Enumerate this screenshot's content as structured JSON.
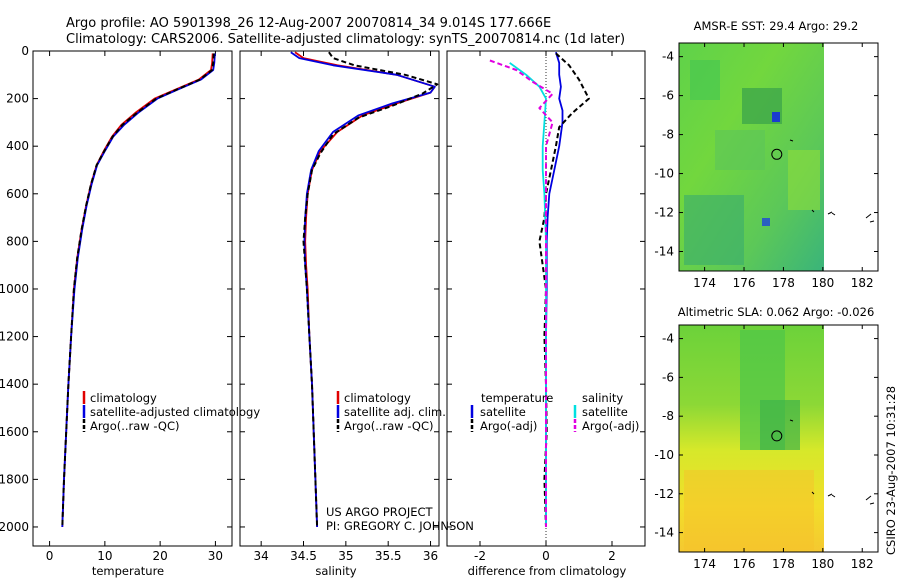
{
  "title_line1": "Argo profile: AO 5901398_26 12-Aug-2007 20070814_34 9.014S 177.666E",
  "title_line2": "Climatology: CARS2006. Satellite-adjusted climatology: synTS_20070814.nc (1d later)",
  "credit_line1": "US ARGO PROJECT",
  "credit_line2": "PI: GREGORY C. JOHNSON",
  "timestamp": "CSIRO 23-Aug-2007 10:31:28",
  "colors": {
    "climatology": "#e00000",
    "satellite": "#0000e0",
    "argo": "#000000",
    "sal_satellite": "#00e0e0",
    "sal_argo": "#e000e0"
  },
  "chart_data": [
    {
      "type": "line",
      "xlabel": "temperature",
      "xlim": [
        -3,
        33
      ],
      "ylim": [
        0,
        2080
      ],
      "y_inverted": true,
      "x_ticks": [
        0,
        10,
        20,
        30
      ],
      "y_ticks": [
        0,
        200,
        400,
        600,
        800,
        1000,
        1200,
        1400,
        1600,
        1800,
        2000
      ],
      "legend": [
        "climatology",
        "satellite-adjusted climatology",
        "Argo(..raw -QC)"
      ],
      "series": [
        {
          "name": "climatology",
          "color": "#e00000",
          "points": [
            [
              29.5,
              10
            ],
            [
              29.4,
              50
            ],
            [
              29.2,
              80
            ],
            [
              27,
              120
            ],
            [
              23,
              160
            ],
            [
              19,
              200
            ],
            [
              15.5,
              260
            ],
            [
              13,
              310
            ],
            [
              11.3,
              360
            ],
            [
              9.8,
              420
            ],
            [
              8.5,
              480
            ],
            [
              7.5,
              560
            ],
            [
              6.6,
              650
            ],
            [
              5.8,
              750
            ],
            [
              5,
              870
            ],
            [
              4.4,
              1000
            ],
            [
              3.9,
              1200
            ],
            [
              3.4,
              1400
            ],
            [
              3,
              1600
            ],
            [
              2.6,
              1800
            ],
            [
              2.3,
              2000
            ]
          ]
        },
        {
          "name": "satellite-adjusted climatology",
          "color": "#0000e0",
          "points": [
            [
              29.9,
              10
            ],
            [
              29.8,
              50
            ],
            [
              29.6,
              80
            ],
            [
              27.4,
              120
            ],
            [
              23.4,
              160
            ],
            [
              19.5,
              200
            ],
            [
              16,
              260
            ],
            [
              13.5,
              310
            ],
            [
              11.5,
              360
            ],
            [
              10,
              420
            ],
            [
              8.6,
              480
            ],
            [
              7.6,
              560
            ],
            [
              6.7,
              650
            ],
            [
              5.9,
              750
            ],
            [
              5.1,
              870
            ],
            [
              4.5,
              1000
            ],
            [
              3.9,
              1200
            ],
            [
              3.4,
              1400
            ],
            [
              3,
              1600
            ],
            [
              2.6,
              1800
            ],
            [
              2.3,
              2000
            ]
          ]
        },
        {
          "name": "Argo(..raw -QC)",
          "color": "#000000",
          "dash": true,
          "points": [
            [
              29.7,
              10
            ],
            [
              29.6,
              50
            ],
            [
              29.4,
              80
            ],
            [
              27.2,
              120
            ],
            [
              23.2,
              160
            ],
            [
              19.3,
              200
            ],
            [
              15.8,
              260
            ],
            [
              13.2,
              310
            ],
            [
              11.4,
              360
            ],
            [
              9.9,
              420
            ],
            [
              8.5,
              480
            ],
            [
              7.5,
              560
            ],
            [
              6.6,
              650
            ],
            [
              5.8,
              750
            ],
            [
              5,
              870
            ],
            [
              4.4,
              1000
            ],
            [
              3.9,
              1200
            ],
            [
              3.4,
              1400
            ],
            [
              3,
              1600
            ],
            [
              2.6,
              1800
            ],
            [
              2.3,
              2000
            ]
          ]
        }
      ]
    },
    {
      "type": "line",
      "xlabel": "salinity",
      "xlim": [
        33.75,
        36.1
      ],
      "ylim": [
        0,
        2080
      ],
      "y_inverted": true,
      "x_ticks": [
        34,
        34.5,
        35,
        35.5,
        36
      ],
      "y_ticks": [
        0,
        200,
        400,
        600,
        800,
        1000,
        1200,
        1400,
        1600,
        1800,
        2000
      ],
      "legend": [
        "climatology",
        "satellite adj. clim.",
        "Argo(..raw -QC)"
      ],
      "series": [
        {
          "name": "climatology",
          "color": "#e00000",
          "points": [
            [
              34.4,
              5
            ],
            [
              34.5,
              30
            ],
            [
              34.9,
              60
            ],
            [
              35.6,
              100
            ],
            [
              36.05,
              150
            ],
            [
              36.0,
              175
            ],
            [
              35.6,
              220
            ],
            [
              35.2,
              270
            ],
            [
              34.9,
              340
            ],
            [
              34.7,
              420
            ],
            [
              34.6,
              500
            ],
            [
              34.55,
              600
            ],
            [
              34.53,
              700
            ],
            [
              34.52,
              800
            ],
            [
              34.53,
              900
            ],
            [
              34.55,
              1000
            ],
            [
              34.57,
              1200
            ],
            [
              34.6,
              1400
            ],
            [
              34.62,
              1600
            ],
            [
              34.64,
              1800
            ],
            [
              34.66,
              2000
            ]
          ]
        },
        {
          "name": "satellite adj. clim.",
          "color": "#0000e0",
          "points": [
            [
              34.35,
              5
            ],
            [
              34.45,
              30
            ],
            [
              34.85,
              60
            ],
            [
              35.6,
              100
            ],
            [
              36.05,
              150
            ],
            [
              36.0,
              175
            ],
            [
              35.55,
              220
            ],
            [
              35.15,
              270
            ],
            [
              34.85,
              340
            ],
            [
              34.68,
              420
            ],
            [
              34.59,
              500
            ],
            [
              34.54,
              600
            ],
            [
              34.52,
              700
            ],
            [
              34.51,
              800
            ],
            [
              34.52,
              900
            ],
            [
              34.54,
              1000
            ],
            [
              34.57,
              1200
            ],
            [
              34.6,
              1400
            ],
            [
              34.62,
              1600
            ],
            [
              34.64,
              1800
            ],
            [
              34.66,
              2000
            ]
          ]
        },
        {
          "name": "Argo(..raw -QC)",
          "color": "#000000",
          "dash": true,
          "points": [
            [
              34.8,
              5
            ],
            [
              34.85,
              30
            ],
            [
              35.1,
              60
            ],
            [
              35.7,
              100
            ],
            [
              36.08,
              140
            ],
            [
              35.9,
              180
            ],
            [
              35.55,
              230
            ],
            [
              35.15,
              280
            ],
            [
              34.85,
              350
            ],
            [
              34.7,
              430
            ],
            [
              34.6,
              500
            ],
            [
              34.55,
              600
            ],
            [
              34.52,
              700
            ],
            [
              34.5,
              800
            ],
            [
              34.52,
              900
            ],
            [
              34.54,
              1000
            ],
            [
              34.57,
              1200
            ],
            [
              34.6,
              1400
            ],
            [
              34.62,
              1600
            ],
            [
              34.64,
              1800
            ],
            [
              34.66,
              2000
            ]
          ]
        }
      ]
    },
    {
      "type": "line",
      "xlabel": "difference from climatology",
      "xlim": [
        -3,
        3
      ],
      "ylim": [
        0,
        2080
      ],
      "y_inverted": true,
      "x_ticks": [
        -2,
        0,
        2
      ],
      "y_ticks": [
        0,
        200,
        400,
        600,
        800,
        1000,
        1200,
        1400,
        1600,
        1800,
        2000
      ],
      "legend_temperature_header": "temperature",
      "legend_salinity_header": "salinity",
      "legend": [
        "satellite",
        "Argo(-adj)",
        "satellite",
        "Argo(-adj)"
      ],
      "series": [
        {
          "name": "satellite",
          "group": "temperature",
          "color": "#0000e0",
          "points": [
            [
              0.3,
              5
            ],
            [
              0.4,
              50
            ],
            [
              0.4,
              100
            ],
            [
              0.45,
              150
            ],
            [
              0.4,
              200
            ],
            [
              0.5,
              250
            ],
            [
              0.5,
              300
            ],
            [
              0.4,
              400
            ],
            [
              0.25,
              500
            ],
            [
              0.1,
              600
            ],
            [
              0.05,
              700
            ],
            [
              0.02,
              800
            ],
            [
              0.02,
              1000
            ],
            [
              0,
              1200
            ],
            [
              0,
              1500
            ],
            [
              0,
              2000
            ]
          ]
        },
        {
          "name": "Argo(-adj)",
          "group": "temperature",
          "color": "#000000",
          "dash": true,
          "points": [
            [
              0.3,
              10
            ],
            [
              0.7,
              60
            ],
            [
              1.0,
              120
            ],
            [
              1.3,
              200
            ],
            [
              0.8,
              260
            ],
            [
              0.4,
              320
            ],
            [
              0.3,
              400
            ],
            [
              0.15,
              500
            ],
            [
              0,
              600
            ],
            [
              -0.05,
              700
            ],
            [
              -0.2,
              800
            ],
            [
              -0.1,
              900
            ],
            [
              0,
              1000
            ],
            [
              -0.05,
              1200
            ],
            [
              0,
              1400
            ],
            [
              0.02,
              1600
            ],
            [
              -0.05,
              1800
            ],
            [
              0,
              2000
            ]
          ]
        },
        {
          "name": "satellite",
          "group": "salinity",
          "color": "#00e0e0",
          "points": [
            [
              -1.1,
              50
            ],
            [
              -0.6,
              100
            ],
            [
              -0.2,
              150
            ],
            [
              0,
              200
            ],
            [
              -0.05,
              300
            ],
            [
              -0.1,
              400
            ],
            [
              -0.1,
              500
            ],
            [
              -0.05,
              600
            ],
            [
              0,
              800
            ],
            [
              0,
              1000
            ],
            [
              0,
              1500
            ],
            [
              0,
              2000
            ]
          ]
        },
        {
          "name": "Argo(-adj)",
          "group": "salinity",
          "color": "#e000e0",
          "dash": true,
          "points": [
            [
              -1.7,
              40
            ],
            [
              -0.9,
              80
            ],
            [
              -0.4,
              130
            ],
            [
              0.2,
              180
            ],
            [
              -0.2,
              240
            ],
            [
              0.2,
              300
            ],
            [
              0,
              400
            ],
            [
              0,
              500
            ],
            [
              0,
              700
            ],
            [
              0,
              1000
            ],
            [
              0,
              1500
            ],
            [
              0,
              2000
            ]
          ]
        }
      ]
    },
    {
      "type": "heatmap",
      "title": "AMSR-E SST: 29.4 Argo: 29.2",
      "x_ticks": [
        174,
        176,
        178,
        180,
        182
      ],
      "y_ticks": [
        -4,
        -6,
        -8,
        -10,
        -12,
        -14
      ],
      "xlim": [
        172.7,
        182.8
      ],
      "ylim": [
        -15,
        -3.3
      ],
      "data_extent_x": [
        172.7,
        180
      ],
      "data_extent_y": [
        -15,
        -3.3
      ],
      "argo_position": [
        177.666,
        -9.014
      ]
    },
    {
      "type": "heatmap",
      "title": "Altimetric SLA: 0.062 Argo: -0.026",
      "x_ticks": [
        174,
        176,
        178,
        180,
        182
      ],
      "y_ticks": [
        -4,
        -6,
        -8,
        -10,
        -12,
        -14
      ],
      "xlim": [
        172.7,
        182.8
      ],
      "ylim": [
        -15,
        -3.3
      ],
      "data_extent_x": [
        172.7,
        180
      ],
      "data_extent_y": [
        -15,
        -3.3
      ],
      "argo_position": [
        177.666,
        -9.014
      ]
    }
  ]
}
